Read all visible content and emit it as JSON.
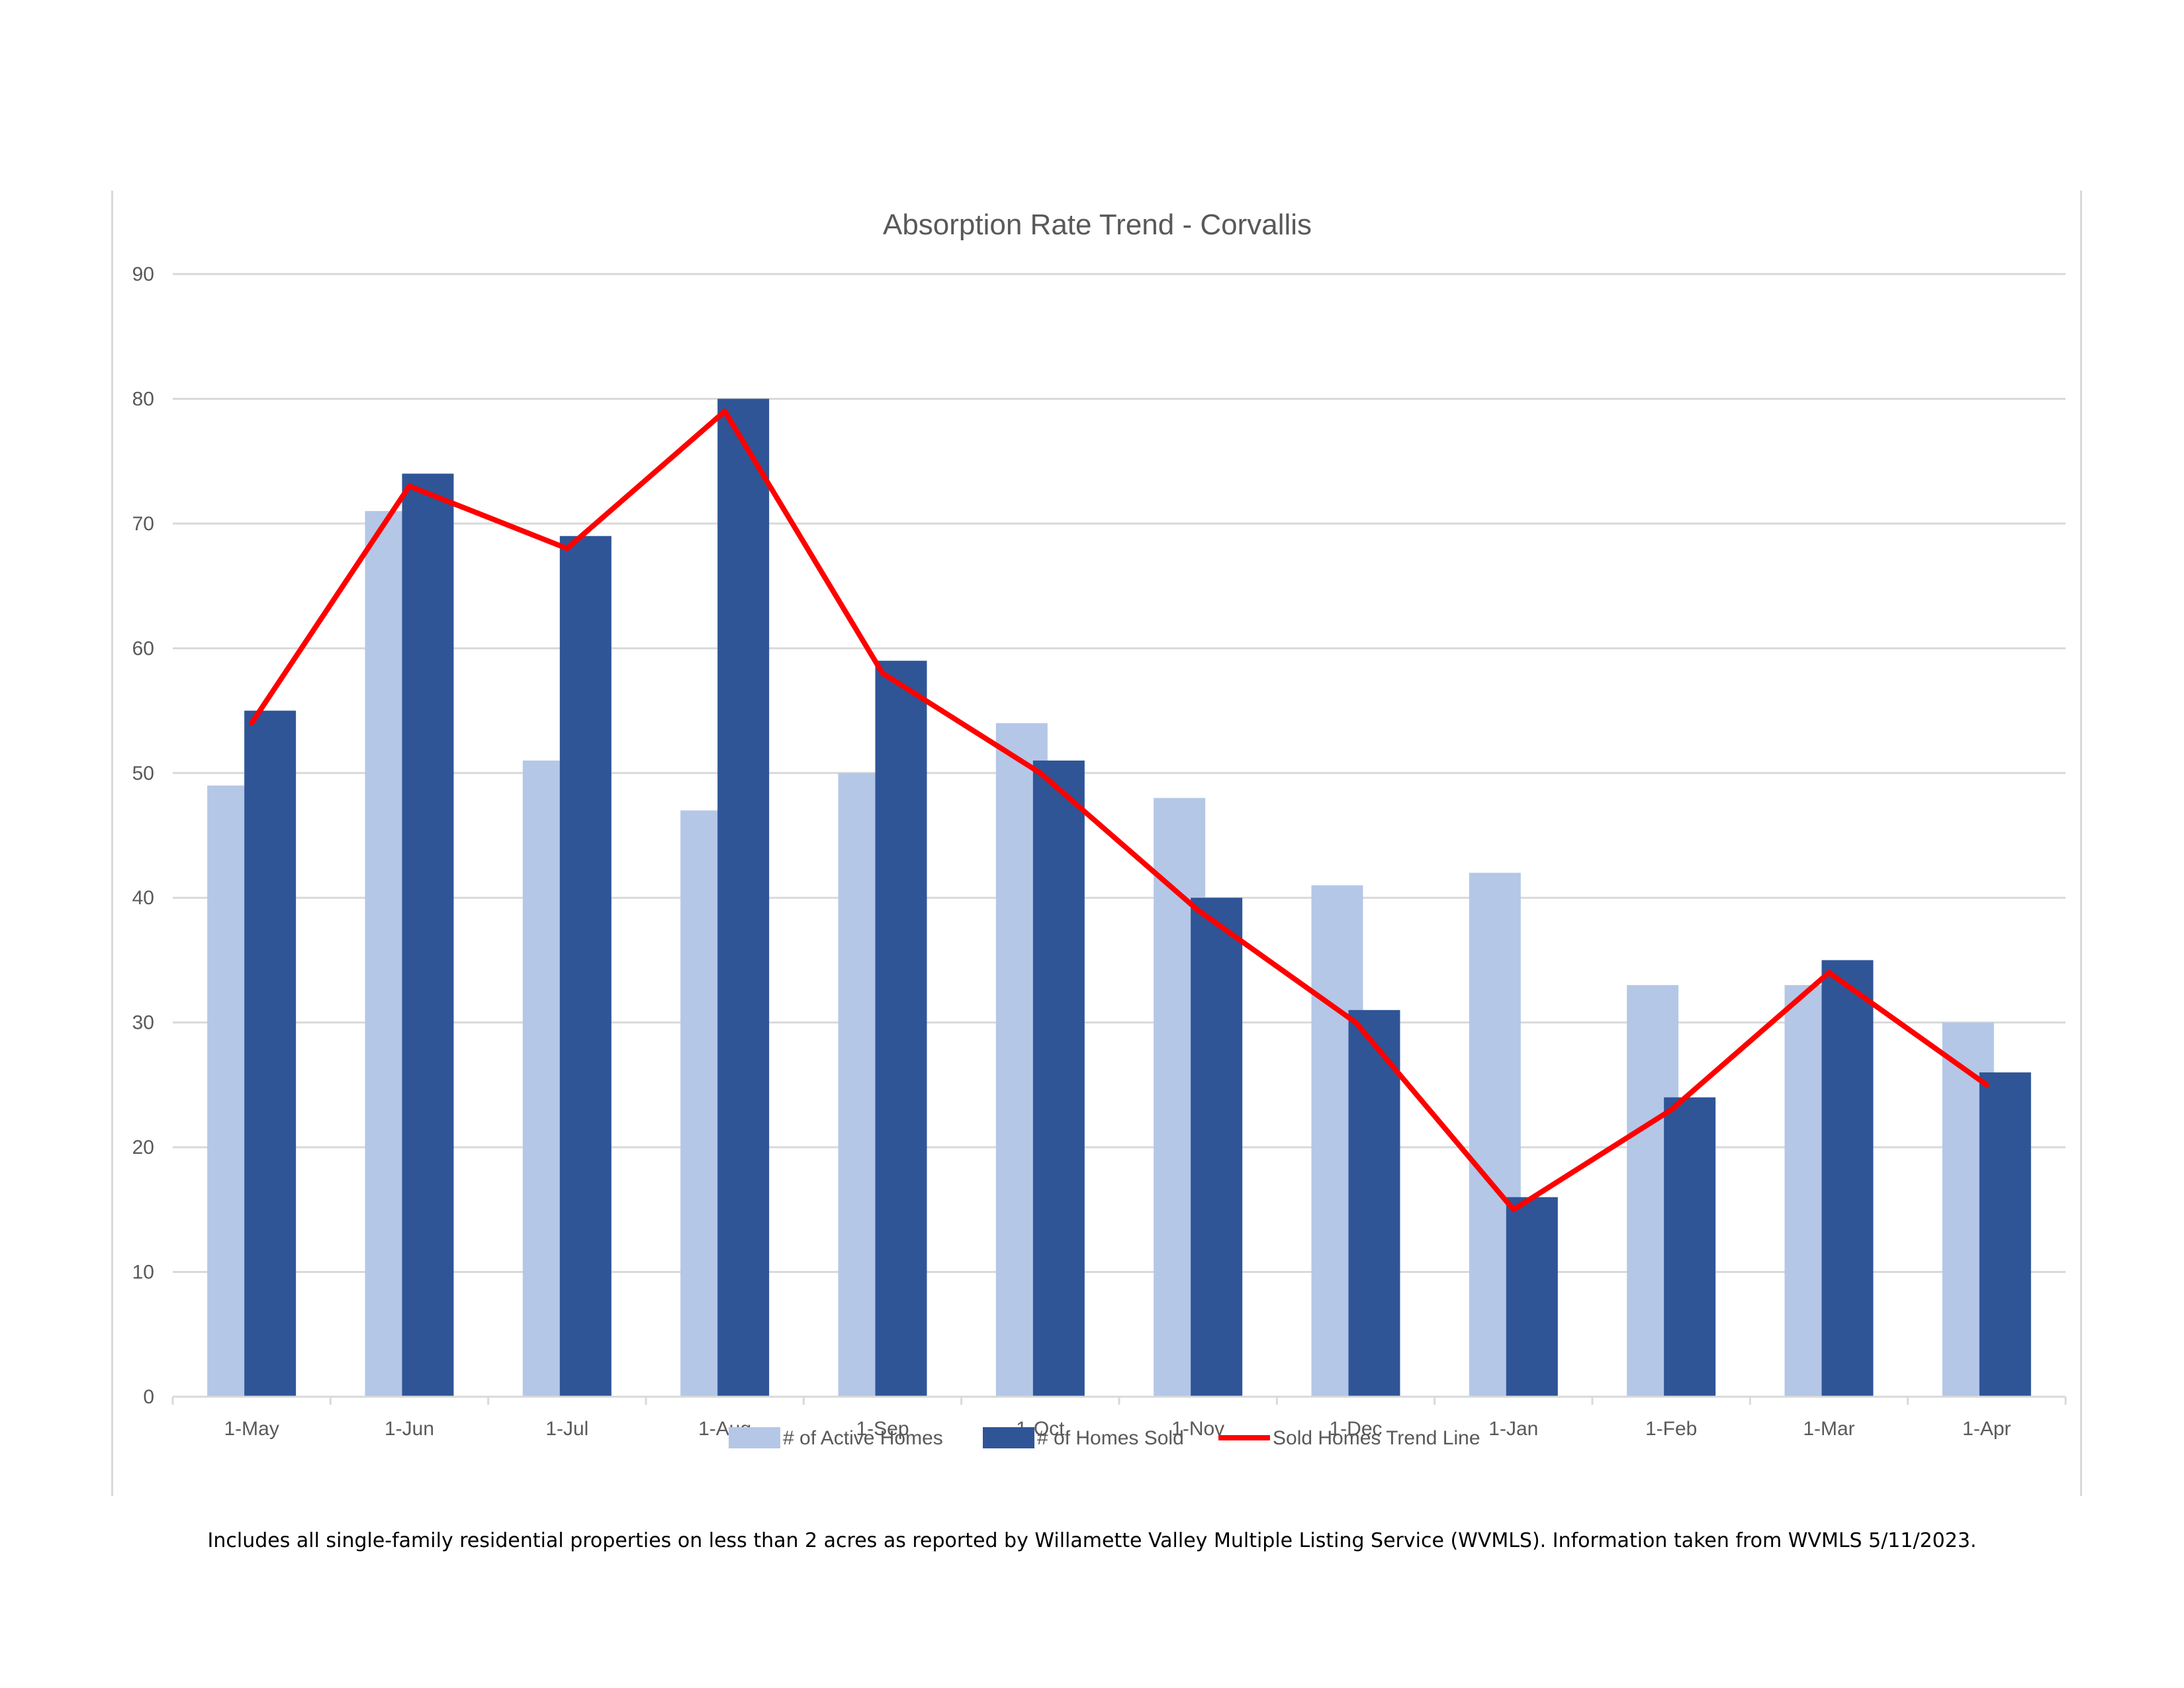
{
  "chart_data": {
    "type": "bar",
    "title": "Absorption Rate Trend - Corvallis",
    "xlabel": "",
    "ylabel": "",
    "ylim": [
      0,
      90
    ],
    "yticks": [
      0,
      10,
      20,
      30,
      40,
      50,
      60,
      70,
      80,
      90
    ],
    "grid": true,
    "legend_position": "bottom",
    "categories": [
      "1-May",
      "1-Jun",
      "1-Jul",
      "1-Aug",
      "1-Sep",
      "1-Oct",
      "1-Nov",
      "1-Dec",
      "1-Jan",
      "1-Feb",
      "1-Mar",
      "1-Apr"
    ],
    "series": [
      {
        "name": "# of Active Homes",
        "type": "bar",
        "color": "#b4c7e7",
        "values": [
          49,
          71,
          51,
          47,
          50,
          54,
          48,
          41,
          42,
          33,
          33,
          30
        ]
      },
      {
        "name": "# of Homes Sold",
        "type": "bar",
        "color": "#2f5597",
        "values": [
          55,
          74,
          69,
          80,
          59,
          51,
          40,
          31,
          16,
          24,
          35,
          26
        ]
      },
      {
        "name": "Sold Homes Trend Line",
        "type": "line",
        "color": "#ff0000",
        "values": [
          54,
          73,
          68,
          79,
          58,
          50,
          39,
          30,
          15,
          23,
          34,
          25
        ]
      }
    ]
  },
  "footnote": "Includes all single-family residential properties on less than 2 acres as reported by Willamette Valley Multiple Listing Service (WVMLS). Information taken from WVMLS 5/11/2023."
}
